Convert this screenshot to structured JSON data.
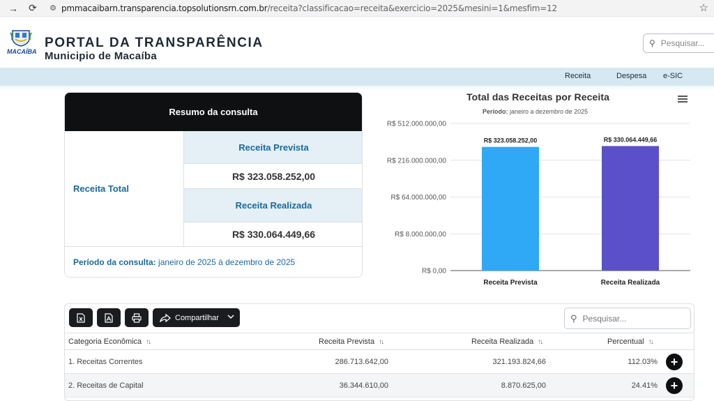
{
  "browser": {
    "url_host": "pmmacaibarn.transparencia.topsolutionsrn.com.br",
    "url_path": "/receita?classificacao=receita&exercicio=2025&mesini=1&mesfim=12"
  },
  "header": {
    "logo_city": "MACAÍBA",
    "title": "PORTAL DA TRANSPARÊNCIA",
    "subtitle": "Municipio de Macaíba",
    "search_placeholder": "Pesquisar..."
  },
  "menu": {
    "items": [
      "Receita",
      "Despesa",
      "e-SIC"
    ]
  },
  "summary": {
    "heading": "Resumo da consulta",
    "row_label": "Receita Total",
    "prevista_label": "Receita Prevista",
    "prevista_value": "R$ 323.058.252,00",
    "realizada_label": "Receita Realizada",
    "realizada_value": "R$ 330.064.449,66",
    "periodo_label": "Período da consulta:",
    "periodo_value": "janeiro de 2025 à dezembro de 2025"
  },
  "chart": {
    "title": "Total das Receitas por Receita",
    "subtitle_label": "Período:",
    "subtitle_value": "janeiro a dezembro de 2025"
  },
  "chart_data": {
    "type": "bar",
    "title": "Total das Receitas por Receita",
    "subtitle": "Período: janeiro a dezembro de 2025",
    "categories": [
      "Receita Prevista",
      "Receita Realizada"
    ],
    "values": [
      323058252.0,
      330064449.66
    ],
    "value_labels": [
      "R$ 323.058.252,00",
      "R$ 330.064.449,66"
    ],
    "colors": [
      "#2fa8f5",
      "#5b50c9"
    ],
    "y_scale": "log-like",
    "y_ticks": [
      0,
      8000000,
      64000000,
      216000000,
      512000000
    ],
    "y_tick_labels": [
      "R$ 0,00",
      "R$ 8.000.000,00",
      "R$ 64.000.000,00",
      "R$ 216.000.000,00",
      "R$ 512.000.000,00"
    ],
    "ylim": [
      0,
      512000000
    ],
    "grid": true,
    "legend": "none"
  },
  "table": {
    "buttons": {
      "share_label": "Compartilhar"
    },
    "search_placeholder": "Pesquisar...",
    "columns": [
      "Categoria Econômica",
      "Receita Prevista",
      "Receita Realizada",
      "Percentual"
    ],
    "rows": [
      [
        "1. Receitas Correntes",
        "286.713.642,00",
        "321.193.824,66",
        "112.03%"
      ],
      [
        "2. Receitas de Capital",
        "36.344.610,00",
        "8.870.625,00",
        "24.41%"
      ]
    ]
  }
}
